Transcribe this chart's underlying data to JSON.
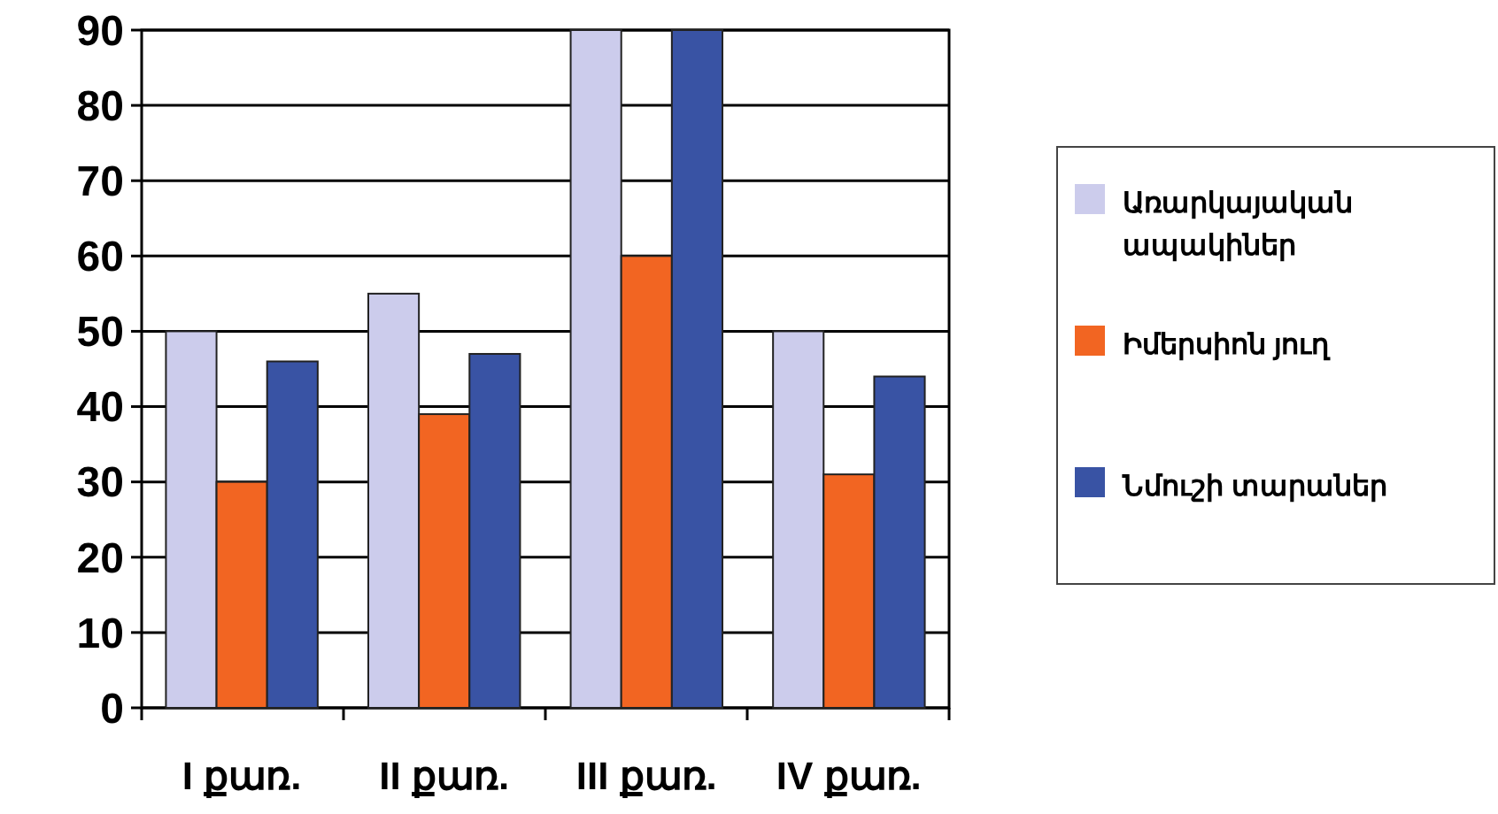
{
  "chart_data": {
    "type": "bar",
    "categories": [
      "I քառ.",
      "II քառ.",
      "III քառ.",
      "IV քառ."
    ],
    "series": [
      {
        "name": "Առարկայական ապակիներ",
        "color": "#ccccec",
        "values": [
          50,
          55,
          90,
          50
        ]
      },
      {
        "name": "Իմերսիոն յուղ",
        "color": "#f26522",
        "values": [
          30,
          39,
          60,
          31
        ]
      },
      {
        "name": "Նմուշի տարաներ",
        "color": "#3953a4",
        "values": [
          46,
          47,
          90,
          44
        ]
      }
    ],
    "ylim": [
      0,
      90
    ],
    "yticks": [
      0,
      10,
      20,
      30,
      40,
      50,
      60,
      70,
      80,
      90
    ],
    "grid": "y",
    "legend": "right"
  }
}
